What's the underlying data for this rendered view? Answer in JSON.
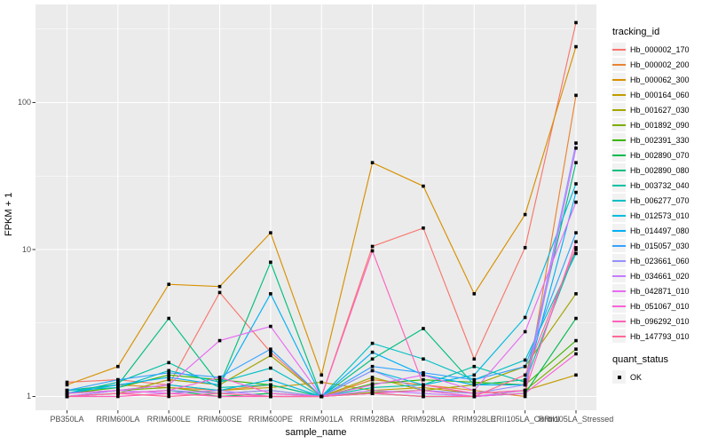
{
  "colors": {
    "panel_bg": "#EBEBEB",
    "grid": "#FFFFFF",
    "tick": "#333333",
    "axis_text": "#4D4D4D",
    "legend_key_bg": "#F2F2F2",
    "point": "#000000"
  },
  "chart_data": {
    "type": "line",
    "title": "",
    "xlabel": "sample_name",
    "ylabel": "FPKM + 1",
    "y_scale": "log10",
    "y_ticks": [
      "1",
      "10",
      "100"
    ],
    "ylim": [
      1,
      430
    ],
    "grid": "on",
    "legend_position": "right",
    "categories": [
      "PB350LA",
      "RRIM600LA",
      "RRIM600LE",
      "RRIM600SE",
      "RRIM600PE",
      "RRIM901LA",
      "RRIM928BA",
      "RRIM928LA",
      "RRIM928LE",
      "RRII105LA_Control",
      "RRII105LA_Stressed"
    ],
    "series": [
      {
        "name": "Hb_000002_170",
        "color": "#F8766D",
        "values": [
          1.25,
          1.3,
          1.2,
          5.1,
          2.0,
          1.0,
          10.5,
          14,
          1.8,
          10.3,
          350
        ]
      },
      {
        "name": "Hb_000002_200",
        "color": "#EA8331",
        "values": [
          1.1,
          1.2,
          1.15,
          1.1,
          1.2,
          1.0,
          1.3,
          1.2,
          1.1,
          1.0,
          112
        ]
      },
      {
        "name": "Hb_000062_300",
        "color": "#D89000",
        "values": [
          1.2,
          1.6,
          5.8,
          5.6,
          13,
          1.4,
          39,
          27,
          5.0,
          17.3,
          240
        ]
      },
      {
        "name": "Hb_000164_060",
        "color": "#C09B00",
        "values": [
          1.05,
          1.1,
          1.2,
          1.1,
          1.15,
          1.25,
          1.1,
          1.15,
          1.05,
          1.1,
          1.4
        ]
      },
      {
        "name": "Hb_001627_030",
        "color": "#A3A500",
        "values": [
          1.0,
          1.05,
          1.3,
          1.2,
          1.9,
          1.0,
          1.35,
          1.1,
          1.2,
          1.6,
          5.0
        ]
      },
      {
        "name": "Hb_001892_090",
        "color": "#7CAE00",
        "values": [
          1.0,
          1.1,
          1.15,
          1.05,
          1.1,
          1.0,
          1.07,
          1.1,
          1.0,
          1.1,
          2.1
        ]
      },
      {
        "name": "Hb_002391_330",
        "color": "#39B600",
        "values": [
          1.05,
          1.15,
          1.4,
          1.3,
          1.2,
          1.0,
          1.22,
          1.3,
          1.25,
          1.2,
          2.4
        ]
      },
      {
        "name": "Hb_002890_070",
        "color": "#00BB4E",
        "values": [
          1.0,
          1.05,
          1.1,
          1.0,
          1.05,
          1.0,
          1.05,
          1.0,
          1.0,
          1.05,
          3.4
        ]
      },
      {
        "name": "Hb_002890_080",
        "color": "#00BF7D",
        "values": [
          1.1,
          1.2,
          3.4,
          1.2,
          8.2,
          1.0,
          1.8,
          2.9,
          1.2,
          1.3,
          39
        ]
      },
      {
        "name": "Hb_003732_040",
        "color": "#00C1A3",
        "values": [
          1.05,
          1.25,
          1.7,
          1.15,
          1.2,
          1.0,
          1.15,
          1.2,
          1.6,
          1.25,
          10
        ]
      },
      {
        "name": "Hb_006277_070",
        "color": "#00BFC4",
        "values": [
          1.1,
          1.15,
          1.5,
          1.25,
          1.56,
          1.0,
          2.3,
          1.8,
          1.3,
          1.77,
          9.4
        ]
      },
      {
        "name": "Hb_012573_010",
        "color": "#00BAE0",
        "values": [
          1.0,
          1.1,
          1.2,
          1.1,
          1.3,
          1.0,
          1.5,
          1.2,
          1.4,
          3.45,
          28
        ]
      },
      {
        "name": "Hb_014497_080",
        "color": "#00B0F6",
        "values": [
          1.05,
          1.2,
          1.35,
          1.2,
          5.0,
          1.0,
          2.0,
          1.4,
          1.2,
          1.2,
          24.5
        ]
      },
      {
        "name": "Hb_015057_030",
        "color": "#35A2FF",
        "values": [
          1.1,
          1.3,
          1.45,
          1.35,
          2.1,
          1.0,
          1.6,
          1.45,
          1.3,
          1.6,
          13
        ]
      },
      {
        "name": "Hb_023661_060",
        "color": "#9590FF",
        "values": [
          1.0,
          1.05,
          1.1,
          1.05,
          1.1,
          1.0,
          1.5,
          1.1,
          1.05,
          1.2,
          53
        ]
      },
      {
        "name": "Hb_034661_020",
        "color": "#C77CFF",
        "values": [
          1.0,
          1.1,
          1.05,
          1.1,
          1.0,
          1.0,
          1.1,
          1.05,
          1.0,
          1.1,
          49
        ]
      },
      {
        "name": "Hb_042871_010",
        "color": "#E76BF3",
        "values": [
          1.05,
          1.1,
          1.2,
          2.4,
          3.0,
          1.0,
          1.2,
          1.4,
          1.1,
          2.76,
          21
        ]
      },
      {
        "name": "Hb_051067_010",
        "color": "#FA62DB",
        "values": [
          1.0,
          1.05,
          1.1,
          1.35,
          1.05,
          1.0,
          1.05,
          1.1,
          1.0,
          1.05,
          1.95
        ]
      },
      {
        "name": "Hb_096292_010",
        "color": "#FF62BC",
        "values": [
          1.0,
          1.0,
          1.05,
          1.0,
          1.0,
          1.0,
          9.8,
          1.2,
          1.05,
          1.1,
          11.3
        ]
      },
      {
        "name": "Hb_147793_010",
        "color": "#FF6A98",
        "values": [
          1.0,
          1.05,
          1.0,
          1.05,
          1.0,
          1.0,
          1.05,
          1.0,
          1.0,
          1.4,
          10.3
        ]
      }
    ],
    "legend": {
      "tracking_title": "tracking_id",
      "quant_title": "quant_status",
      "quant_items": [
        {
          "label": "OK",
          "marker": "black-square"
        }
      ]
    }
  }
}
